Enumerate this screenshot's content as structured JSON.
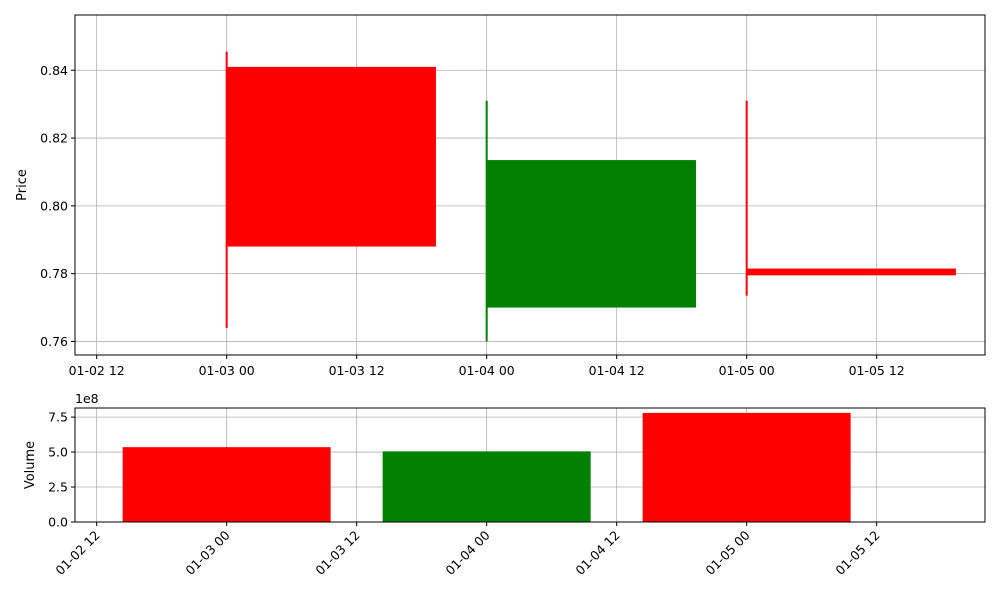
{
  "chart_data": [
    {
      "type": "candlestick",
      "ylabel": "Price",
      "ylim": [
        0.756,
        0.8563
      ],
      "xlim": [
        "2023-01-02 10:00",
        "2023-01-05 22:00"
      ],
      "yticks": [
        0.76,
        0.78,
        0.8,
        0.82,
        0.84
      ],
      "ytick_labels": [
        "0.76",
        "0.78",
        "0.80",
        "0.82",
        "0.84"
      ],
      "xticks": [
        "2023-01-02 12:00",
        "2023-01-03 00:00",
        "2023-01-03 12:00",
        "2023-01-04 00:00",
        "2023-01-04 12:00",
        "2023-01-05 00:00",
        "2023-01-05 12:00"
      ],
      "xtick_labels": [
        "01-02 12",
        "01-03 00",
        "01-03 12",
        "01-04 00",
        "01-04 12",
        "01-05 00",
        "01-05 12"
      ],
      "grid": true,
      "candles": [
        {
          "date": "2023-01-03 00:00",
          "open": 0.841,
          "high": 0.8455,
          "low": 0.764,
          "close": 0.788,
          "color": "#ff0000"
        },
        {
          "date": "2023-01-04 00:00",
          "open": 0.77,
          "high": 0.831,
          "low": 0.76,
          "close": 0.8135,
          "color": "#008000"
        },
        {
          "date": "2023-01-05 00:00",
          "open": 0.7815,
          "high": 0.831,
          "low": 0.7735,
          "close": 0.7795,
          "color": "#ff0000"
        }
      ]
    },
    {
      "type": "bar",
      "ylabel": "Volume",
      "scale_label": "1e8",
      "ylim": [
        0,
        8.15
      ],
      "yticks": [
        0.0,
        2.5,
        5.0,
        7.5
      ],
      "ytick_labels": [
        "0.0",
        "2.5",
        "5.0",
        "7.5"
      ],
      "xticks": [
        "2023-01-02 12:00",
        "2023-01-03 00:00",
        "2023-01-03 12:00",
        "2023-01-04 00:00",
        "2023-01-04 12:00",
        "2023-01-05 00:00",
        "2023-01-05 12:00"
      ],
      "xtick_labels": [
        "01-02 12",
        "01-03 00",
        "01-03 12",
        "01-04 00",
        "01-04 12",
        "01-05 00",
        "01-05 12"
      ],
      "grid": true,
      "bars": [
        {
          "date": "2023-01-03 00:00",
          "value": 5.35,
          "color": "#ff0000"
        },
        {
          "date": "2023-01-04 00:00",
          "value": 5.05,
          "color": "#008000"
        },
        {
          "date": "2023-01-05 00:00",
          "value": 7.8,
          "color": "#ff0000"
        }
      ]
    }
  ]
}
